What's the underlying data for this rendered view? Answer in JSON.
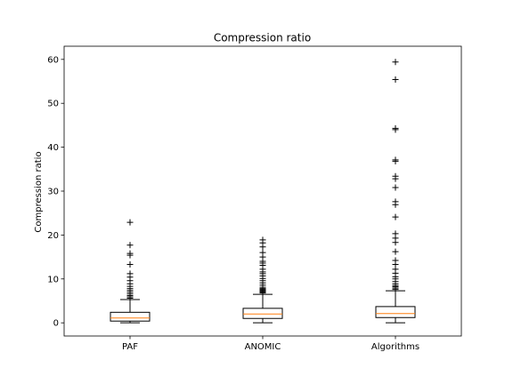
{
  "chart_data": {
    "type": "box",
    "title": "Compression ratio",
    "xlabel": "",
    "ylabel": "Compression ratio",
    "ylim": [
      -3,
      63
    ],
    "yticks": [
      0,
      10,
      20,
      30,
      40,
      50,
      60
    ],
    "grid": false,
    "categories": [
      "PAF",
      "ANOMIC",
      "Algorithms"
    ],
    "boxes": [
      {
        "name": "PAF",
        "whisker_low": 0.0,
        "q1": 0.4,
        "median": 1.1,
        "q3": 2.4,
        "whisker_high": 5.3,
        "outliers": [
          5.6,
          5.9,
          6.2,
          6.6,
          7.0,
          7.4,
          7.8,
          8.3,
          8.9,
          9.6,
          10.4,
          11.2,
          13.3,
          15.4,
          15.8,
          17.7,
          22.9
        ]
      },
      {
        "name": "ANOMIC",
        "whisker_low": 0.0,
        "q1": 1.0,
        "median": 2.0,
        "q3": 3.3,
        "whisker_high": 6.5,
        "outliers": [
          6.8,
          7.0,
          7.2,
          7.4,
          7.6,
          7.8,
          8.1,
          8.6,
          9.1,
          9.6,
          10.1,
          10.7,
          11.2,
          11.6,
          12.2,
          13.1,
          13.6,
          14.0,
          15.0,
          16.0,
          17.3,
          18.2,
          18.9
        ]
      },
      {
        "name": "Algorithms",
        "whisker_low": 0.0,
        "q1": 1.2,
        "median": 2.1,
        "q3": 3.7,
        "whisker_high": 7.3,
        "outliers": [
          7.6,
          7.9,
          8.2,
          8.5,
          8.9,
          9.4,
          10.0,
          10.5,
          11.3,
          12.2,
          13.3,
          14.2,
          16.2,
          18.3,
          19.3,
          20.3,
          24.1,
          26.9,
          27.6,
          30.8,
          32.8,
          33.4,
          36.8,
          37.1,
          44.0,
          44.3,
          55.4,
          59.4
        ]
      }
    ],
    "colors": {
      "box": "#000000",
      "median": "#ff7f0e",
      "outlier": "#000000"
    }
  }
}
